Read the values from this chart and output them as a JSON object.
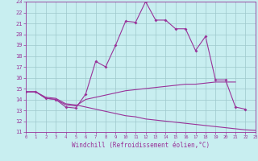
{
  "xlabel": "Windchill (Refroidissement éolien,°C)",
  "xlim": [
    0,
    23
  ],
  "ylim": [
    11,
    23
  ],
  "yticks": [
    11,
    12,
    13,
    14,
    15,
    16,
    17,
    18,
    19,
    20,
    21,
    22,
    23
  ],
  "xticks": [
    0,
    1,
    2,
    3,
    4,
    5,
    6,
    7,
    8,
    9,
    10,
    11,
    12,
    13,
    14,
    15,
    16,
    17,
    18,
    19,
    20,
    21,
    22,
    23
  ],
  "bg_color": "#c8eef0",
  "line_color": "#993399",
  "grid_color": "#9ec8cc",
  "line1_x": [
    0,
    1,
    2,
    3,
    4,
    5,
    6,
    7,
    8,
    9,
    10,
    11,
    12,
    13,
    14,
    15,
    16,
    17,
    18,
    19,
    20,
    21,
    22
  ],
  "line1_y": [
    14.7,
    14.7,
    14.1,
    14.0,
    13.3,
    13.2,
    14.5,
    17.5,
    17.0,
    19.0,
    21.2,
    21.1,
    23.0,
    21.3,
    21.3,
    20.5,
    20.5,
    18.5,
    19.8,
    15.8,
    15.8,
    13.3,
    13.1
  ],
  "line2_x": [
    0,
    1,
    2,
    3,
    4,
    5,
    6,
    7,
    8,
    9,
    10,
    11,
    12,
    13,
    14,
    15,
    16,
    17,
    18,
    19,
    20,
    21
  ],
  "line2_y": [
    14.7,
    14.7,
    14.1,
    14.0,
    13.5,
    13.4,
    14.0,
    14.2,
    14.4,
    14.6,
    14.8,
    14.9,
    15.0,
    15.1,
    15.2,
    15.3,
    15.4,
    15.4,
    15.5,
    15.6,
    15.6,
    15.6
  ],
  "line3_x": [
    0,
    1,
    2,
    3,
    4,
    5,
    6,
    7,
    8,
    9,
    10,
    11,
    12,
    13,
    14,
    15,
    16,
    17,
    18,
    19,
    20,
    21,
    22,
    23
  ],
  "line3_y": [
    14.7,
    14.7,
    14.2,
    14.1,
    13.6,
    13.5,
    13.3,
    13.1,
    12.9,
    12.7,
    12.5,
    12.4,
    12.2,
    12.1,
    12.0,
    11.9,
    11.8,
    11.7,
    11.6,
    11.5,
    11.4,
    11.3,
    11.2,
    11.15
  ]
}
